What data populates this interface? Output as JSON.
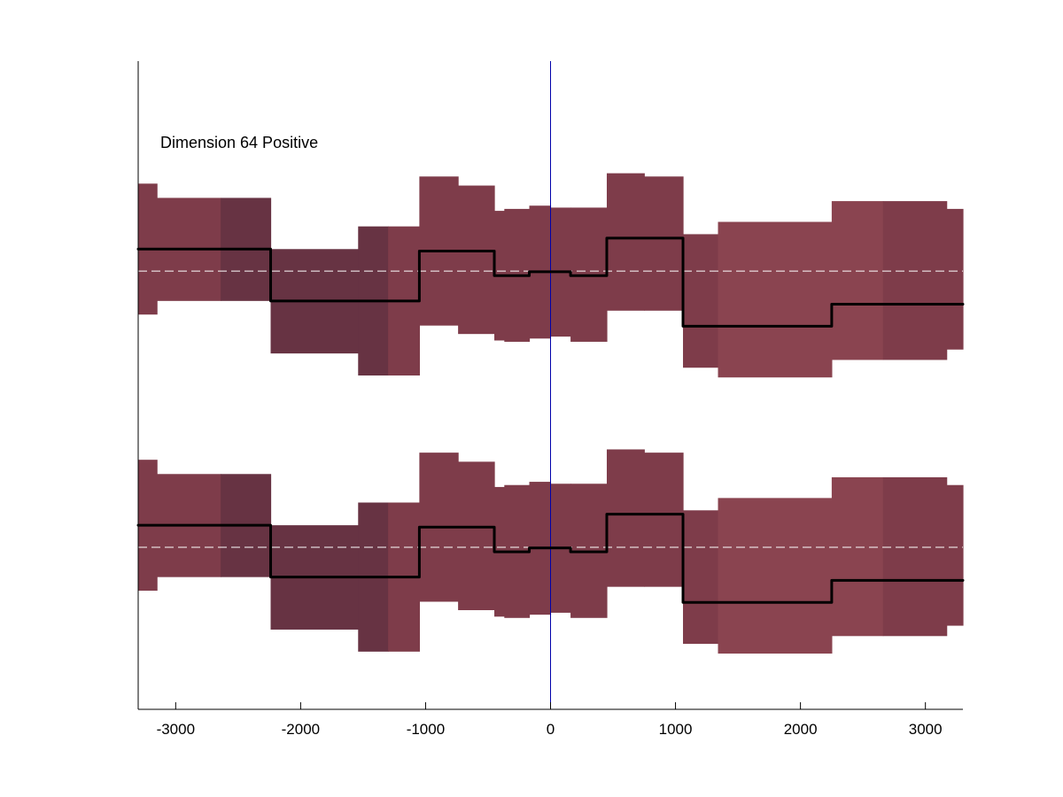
{
  "chart_data": {
    "type": "area",
    "annotation": "Dimension 64 Positive",
    "xlabel": "",
    "ylabel": "",
    "xlim": [
      -3300,
      3300
    ],
    "ylim": [
      0,
      1
    ],
    "grid": false,
    "y_ticks_shown": false,
    "x_ticks": [
      -3000,
      -2000,
      -1000,
      0,
      1000,
      2000,
      3000
    ],
    "x_tick_labels": [
      "-3000",
      "-2000",
      "-1000",
      "0",
      "1000",
      "2000",
      "3000"
    ],
    "vertical_reference_x": 0,
    "colors": {
      "band_light": "#8a4450",
      "band_mid": "#7e3c4a",
      "band_dark": "#673343",
      "line": "#000000",
      "baseline_dash": "#ffffff",
      "reference_line": "#0000aa",
      "axis": "#000000"
    },
    "panels": [
      {
        "baseline": 0.676,
        "segments": [
          {
            "x0": -3300,
            "x1": -3150,
            "lower": 0.609,
            "upper": 0.811,
            "mean": 0.71,
            "shade": "mid"
          },
          {
            "x0": -3150,
            "x1": -2640,
            "lower": 0.63,
            "upper": 0.789,
            "mean": 0.71,
            "shade": "mid"
          },
          {
            "x0": -2640,
            "x1": -2240,
            "lower": 0.63,
            "upper": 0.789,
            "mean": 0.71,
            "shade": "dark"
          },
          {
            "x0": -2240,
            "x1": -1540,
            "lower": 0.549,
            "upper": 0.71,
            "mean": 0.63,
            "shade": "dark"
          },
          {
            "x0": -1540,
            "x1": -1300,
            "lower": 0.515,
            "upper": 0.745,
            "mean": 0.63,
            "shade": "dark"
          },
          {
            "x0": -1300,
            "x1": -1050,
            "lower": 0.515,
            "upper": 0.745,
            "mean": 0.63,
            "shade": "mid"
          },
          {
            "x0": -1050,
            "x1": -740,
            "lower": 0.592,
            "upper": 0.822,
            "mean": 0.707,
            "shade": "mid"
          },
          {
            "x0": -740,
            "x1": -450,
            "lower": 0.579,
            "upper": 0.808,
            "mean": 0.707,
            "shade": "mid"
          },
          {
            "x0": -450,
            "x1": -370,
            "lower": 0.569,
            "upper": 0.769,
            "mean": 0.669,
            "shade": "mid"
          },
          {
            "x0": -370,
            "x1": -170,
            "lower": 0.567,
            "upper": 0.772,
            "mean": 0.669,
            "shade": "mid"
          },
          {
            "x0": -170,
            "x1": 0,
            "lower": 0.572,
            "upper": 0.777,
            "mean": 0.675,
            "shade": "mid"
          },
          {
            "x0": 0,
            "x1": 160,
            "lower": 0.575,
            "upper": 0.774,
            "mean": 0.675,
            "shade": "mid"
          },
          {
            "x0": 160,
            "x1": 450,
            "lower": 0.567,
            "upper": 0.774,
            "mean": 0.669,
            "shade": "mid"
          },
          {
            "x0": 450,
            "x1": 750,
            "lower": 0.615,
            "upper": 0.827,
            "mean": 0.727,
            "shade": "mid"
          },
          {
            "x0": 750,
            "x1": 1060,
            "lower": 0.615,
            "upper": 0.822,
            "mean": 0.727,
            "shade": "mid"
          },
          {
            "x0": 1060,
            "x1": 1340,
            "lower": 0.527,
            "upper": 0.733,
            "mean": 0.591,
            "shade": "mid"
          },
          {
            "x0": 1340,
            "x1": 2250,
            "lower": 0.512,
            "upper": 0.752,
            "mean": 0.591,
            "shade": "light"
          },
          {
            "x0": 2250,
            "x1": 2660,
            "lower": 0.539,
            "upper": 0.784,
            "mean": 0.625,
            "shade": "light"
          },
          {
            "x0": 2660,
            "x1": 3170,
            "lower": 0.539,
            "upper": 0.784,
            "mean": 0.625,
            "shade": "mid"
          },
          {
            "x0": 3170,
            "x1": 3300,
            "lower": 0.555,
            "upper": 0.772,
            "mean": 0.625,
            "shade": "mid"
          }
        ]
      },
      {
        "baseline": 0.25,
        "segments": [
          {
            "x0": -3300,
            "x1": -3150,
            "lower": 0.183,
            "upper": 0.385,
            "mean": 0.284,
            "shade": "mid"
          },
          {
            "x0": -3150,
            "x1": -2640,
            "lower": 0.204,
            "upper": 0.363,
            "mean": 0.284,
            "shade": "mid"
          },
          {
            "x0": -2640,
            "x1": -2240,
            "lower": 0.204,
            "upper": 0.363,
            "mean": 0.284,
            "shade": "dark"
          },
          {
            "x0": -2240,
            "x1": -1540,
            "lower": 0.123,
            "upper": 0.284,
            "mean": 0.204,
            "shade": "dark"
          },
          {
            "x0": -1540,
            "x1": -1300,
            "lower": 0.089,
            "upper": 0.319,
            "mean": 0.204,
            "shade": "dark"
          },
          {
            "x0": -1300,
            "x1": -1050,
            "lower": 0.089,
            "upper": 0.319,
            "mean": 0.204,
            "shade": "mid"
          },
          {
            "x0": -1050,
            "x1": -740,
            "lower": 0.166,
            "upper": 0.396,
            "mean": 0.281,
            "shade": "mid"
          },
          {
            "x0": -740,
            "x1": -450,
            "lower": 0.153,
            "upper": 0.382,
            "mean": 0.281,
            "shade": "mid"
          },
          {
            "x0": -450,
            "x1": -370,
            "lower": 0.143,
            "upper": 0.343,
            "mean": 0.243,
            "shade": "mid"
          },
          {
            "x0": -370,
            "x1": -170,
            "lower": 0.141,
            "upper": 0.346,
            "mean": 0.243,
            "shade": "mid"
          },
          {
            "x0": -170,
            "x1": 0,
            "lower": 0.146,
            "upper": 0.351,
            "mean": 0.249,
            "shade": "mid"
          },
          {
            "x0": 0,
            "x1": 160,
            "lower": 0.149,
            "upper": 0.348,
            "mean": 0.249,
            "shade": "mid"
          },
          {
            "x0": 160,
            "x1": 450,
            "lower": 0.141,
            "upper": 0.348,
            "mean": 0.243,
            "shade": "mid"
          },
          {
            "x0": 450,
            "x1": 750,
            "lower": 0.189,
            "upper": 0.401,
            "mean": 0.301,
            "shade": "mid"
          },
          {
            "x0": 750,
            "x1": 1060,
            "lower": 0.189,
            "upper": 0.396,
            "mean": 0.301,
            "shade": "mid"
          },
          {
            "x0": 1060,
            "x1": 1340,
            "lower": 0.101,
            "upper": 0.307,
            "mean": 0.165,
            "shade": "mid"
          },
          {
            "x0": 1340,
            "x1": 2250,
            "lower": 0.086,
            "upper": 0.326,
            "mean": 0.165,
            "shade": "light"
          },
          {
            "x0": 2250,
            "x1": 2660,
            "lower": 0.113,
            "upper": 0.358,
            "mean": 0.199,
            "shade": "light"
          },
          {
            "x0": 2660,
            "x1": 3170,
            "lower": 0.113,
            "upper": 0.358,
            "mean": 0.199,
            "shade": "mid"
          },
          {
            "x0": 3170,
            "x1": 3300,
            "lower": 0.129,
            "upper": 0.346,
            "mean": 0.199,
            "shade": "mid"
          }
        ]
      }
    ]
  }
}
